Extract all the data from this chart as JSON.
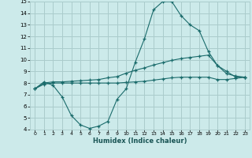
{
  "title": "",
  "xlabel": "Humidex (Indice chaleur)",
  "ylabel": "",
  "bg_color": "#cceaea",
  "grid_color": "#aacccc",
  "line_color": "#1a6b6b",
  "xlim": [
    -0.5,
    23.5
  ],
  "ylim": [
    4,
    15
  ],
  "yticks": [
    4,
    5,
    6,
    7,
    8,
    9,
    10,
    11,
    12,
    13,
    14,
    15
  ],
  "xticks": [
    0,
    1,
    2,
    3,
    4,
    5,
    6,
    7,
    8,
    9,
    10,
    11,
    12,
    13,
    14,
    15,
    16,
    17,
    18,
    19,
    20,
    21,
    22,
    23
  ],
  "line1_x": [
    0,
    1,
    2,
    3,
    4,
    5,
    6,
    7,
    8,
    9,
    10,
    11,
    12,
    13,
    14,
    15,
    16,
    17,
    18,
    19,
    20,
    21,
    22,
    23
  ],
  "line1_y": [
    7.5,
    8.1,
    7.8,
    6.8,
    5.2,
    4.4,
    4.1,
    4.3,
    4.7,
    6.6,
    7.5,
    9.8,
    11.8,
    14.3,
    15.0,
    15.0,
    13.8,
    13.0,
    12.5,
    10.7,
    9.5,
    9.0,
    8.5,
    8.5
  ],
  "line2_x": [
    0,
    1,
    2,
    3,
    4,
    5,
    6,
    7,
    8,
    9,
    10,
    11,
    12,
    13,
    14,
    15,
    16,
    17,
    18,
    19,
    20,
    21,
    22,
    23
  ],
  "line2_y": [
    7.5,
    8.0,
    8.1,
    8.1,
    8.15,
    8.2,
    8.25,
    8.3,
    8.45,
    8.55,
    8.85,
    9.1,
    9.3,
    9.55,
    9.75,
    9.95,
    10.1,
    10.2,
    10.3,
    10.4,
    9.5,
    8.8,
    8.6,
    8.5
  ],
  "line3_x": [
    0,
    1,
    2,
    3,
    4,
    5,
    6,
    7,
    8,
    9,
    10,
    11,
    12,
    13,
    14,
    15,
    16,
    17,
    18,
    19,
    20,
    21,
    22,
    23
  ],
  "line3_y": [
    7.5,
    7.9,
    8.0,
    8.0,
    8.0,
    8.0,
    8.0,
    8.0,
    8.0,
    8.0,
    8.05,
    8.1,
    8.15,
    8.25,
    8.35,
    8.45,
    8.5,
    8.5,
    8.5,
    8.5,
    8.3,
    8.3,
    8.4,
    8.5
  ]
}
